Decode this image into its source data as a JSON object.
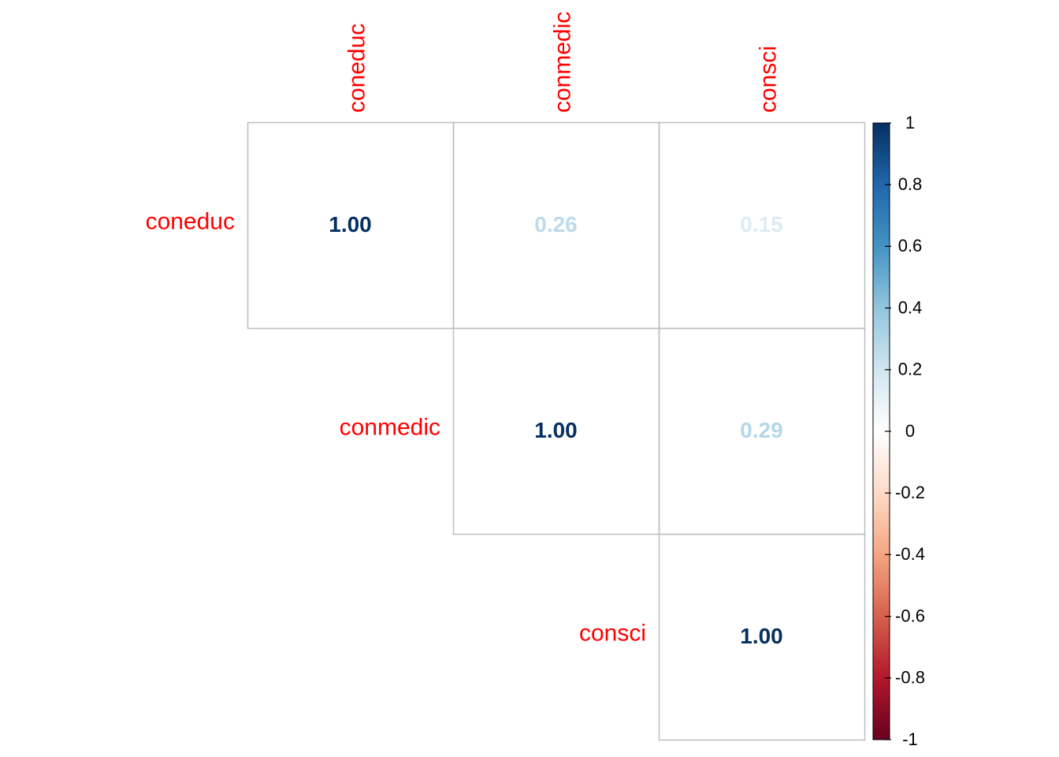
{
  "chart_data": {
    "type": "heatmap",
    "variables": [
      "coneduc",
      "conmedic",
      "consci"
    ],
    "triangle": "upper",
    "matrix": [
      [
        1.0,
        0.26,
        0.15
      ],
      [
        null,
        1.0,
        0.29
      ],
      [
        null,
        null,
        1.0
      ]
    ],
    "cell_labels": [
      [
        "1.00",
        "0.26",
        "0.15"
      ],
      [
        null,
        "1.00",
        "0.29"
      ],
      [
        null,
        null,
        "1.00"
      ]
    ],
    "label_color": "#ff0000",
    "grid_color": "#bebebe",
    "colorbar": {
      "range": [
        -1,
        1
      ],
      "ticks": [
        1,
        0.8,
        0.6,
        0.4,
        0.2,
        0,
        -0.2,
        -0.4,
        -0.6,
        -0.8,
        -1
      ],
      "tick_labels": [
        "1",
        "0.8",
        "0.6",
        "0.4",
        "0.2",
        "0",
        "-0.2",
        "-0.4",
        "-0.6",
        "-0.8",
        "-1"
      ],
      "colors": [
        "#67001f",
        "#b2182b",
        "#d6604d",
        "#f4a582",
        "#fddbc7",
        "#ffffff",
        "#d1e5f0",
        "#92c5de",
        "#4393c3",
        "#2166ac",
        "#053061"
      ]
    }
  }
}
